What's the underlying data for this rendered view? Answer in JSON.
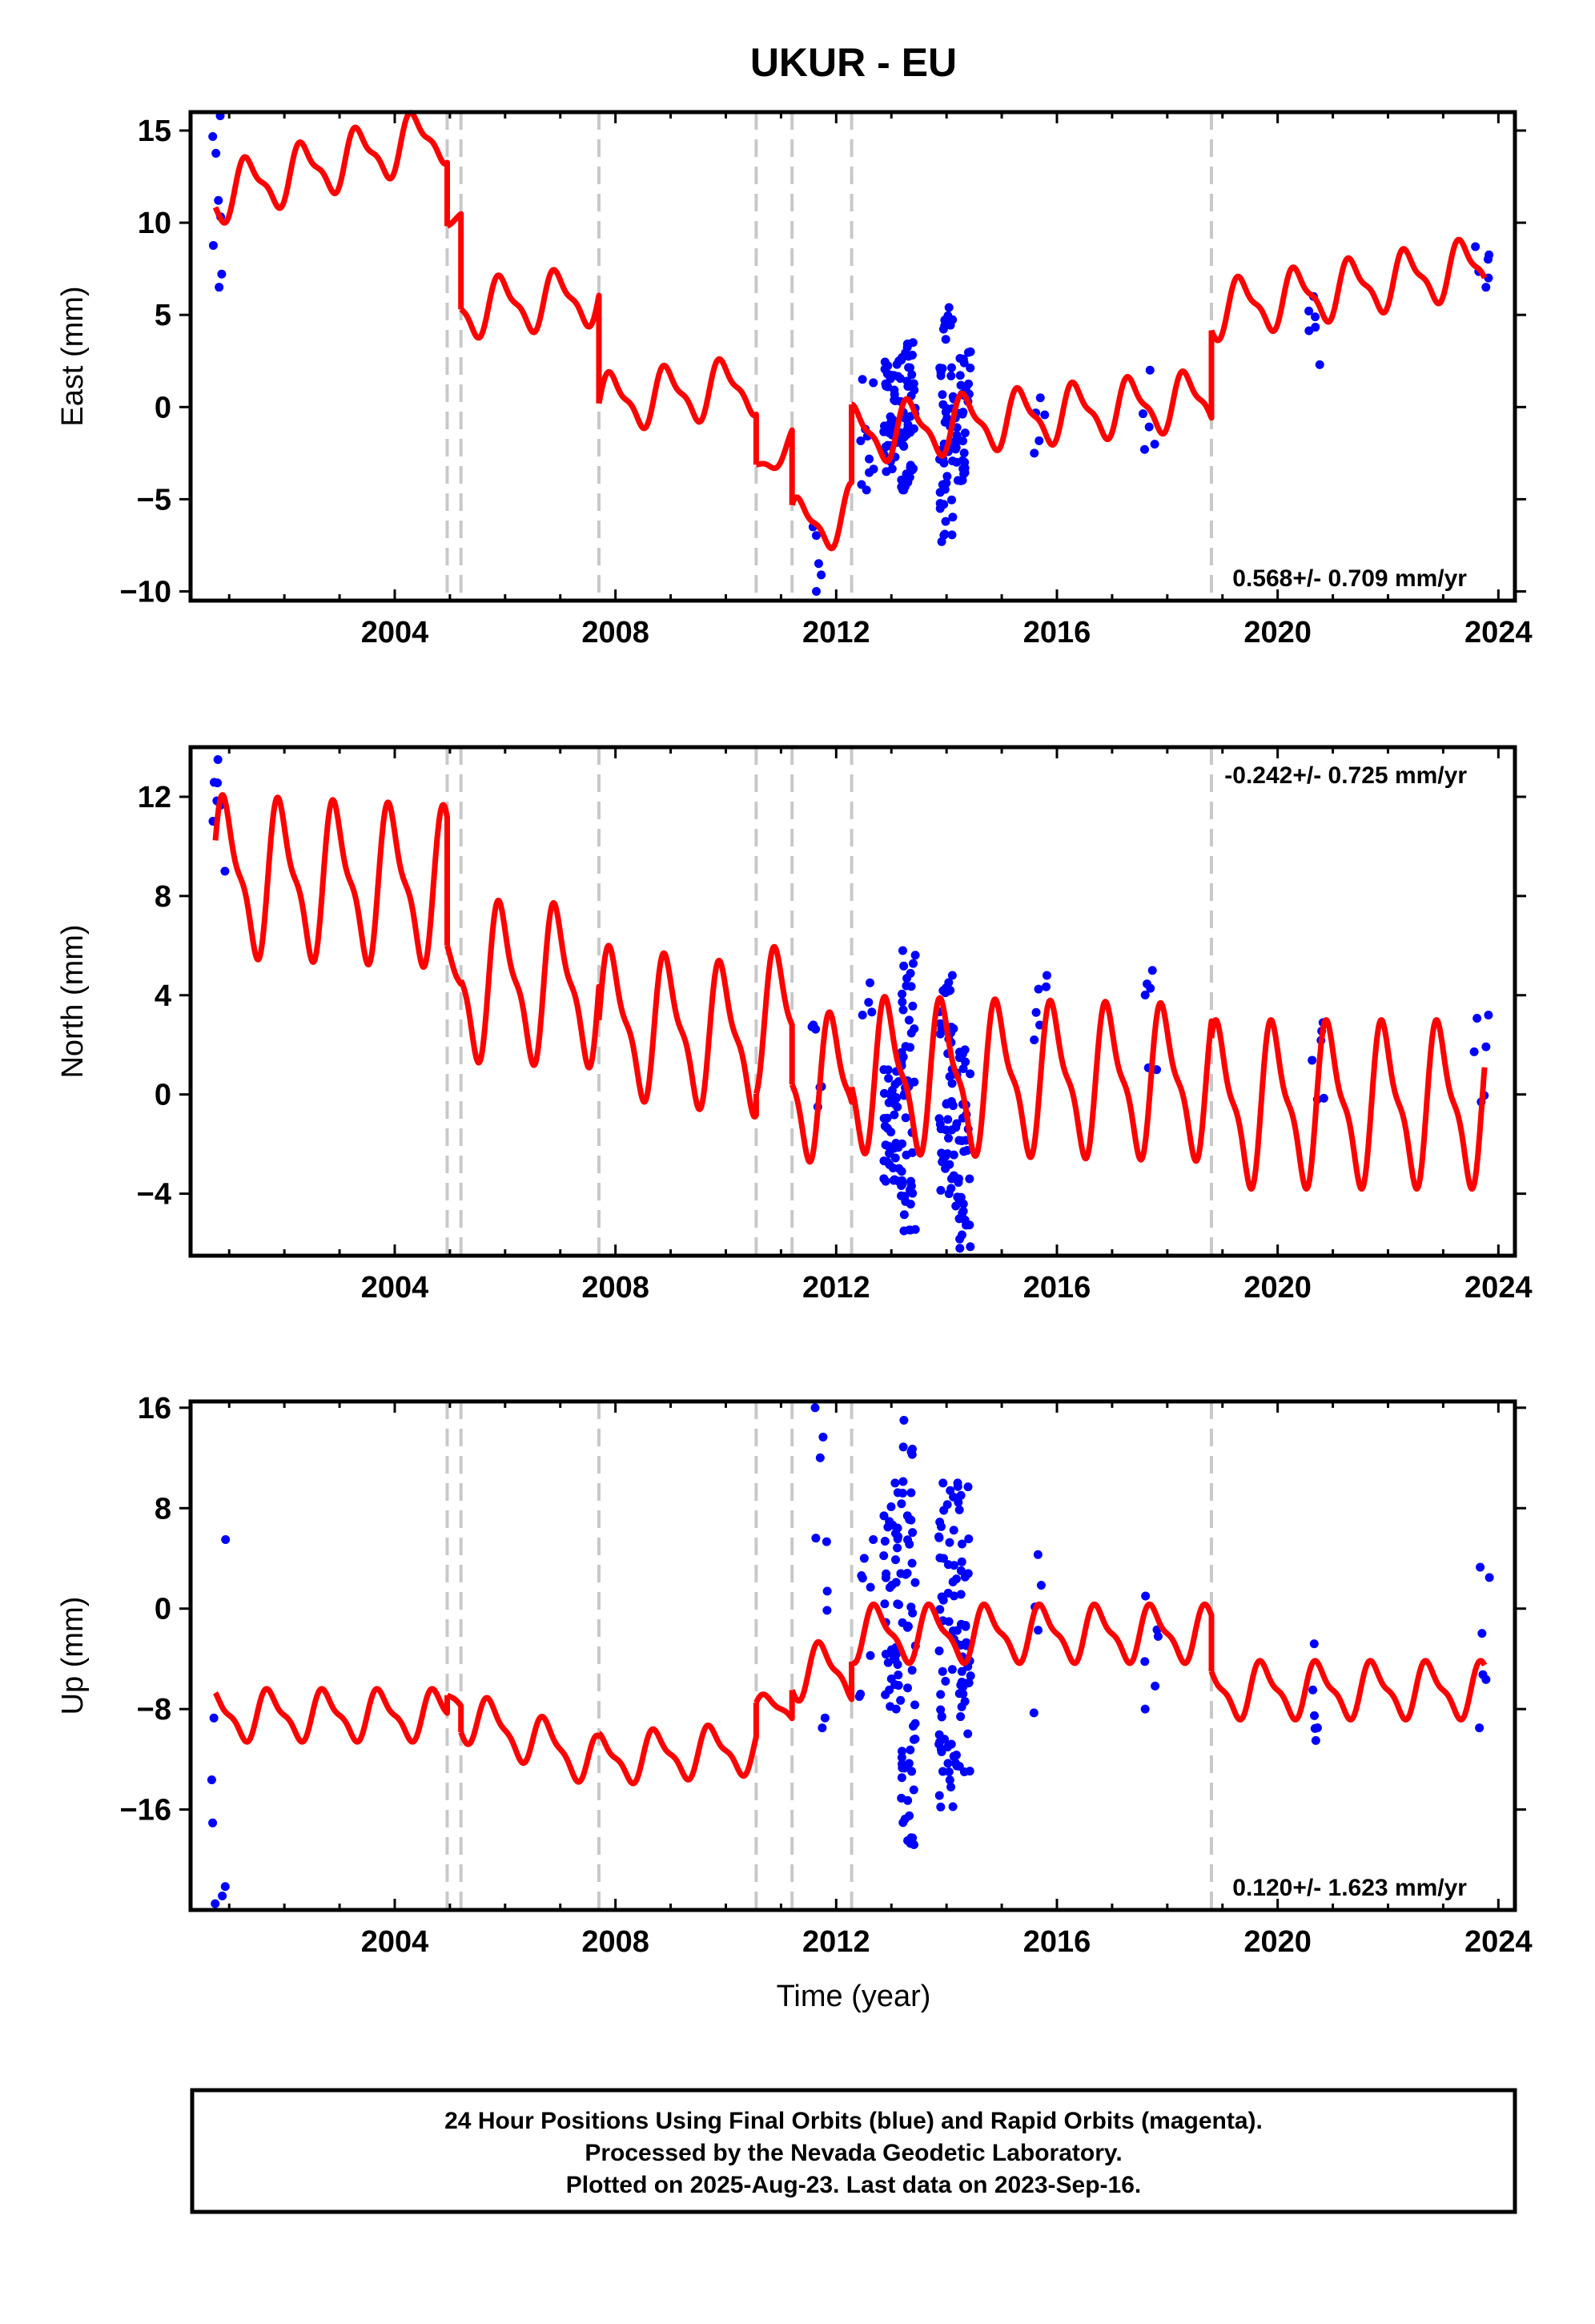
{
  "title": "UKUR - EU",
  "xlabel": "Time (year)",
  "footer": {
    "line1": "24 Hour Positions Using Final Orbits (blue) and Rapid Orbits (magenta).",
    "line2": "Processed by the Nevada Geodetic Laboratory.",
    "line3": "Plotted on 2025-Aug-23. Last data on 2023-Sep-16."
  },
  "colors": {
    "fit": "#ff0000",
    "points": "#0000ff",
    "breaks": "#c8c8c8",
    "frame": "#000000"
  },
  "chart_data": [
    {
      "type": "line",
      "panel": "east",
      "ylabel": "East (mm)",
      "xlim": [
        2000.3,
        2024.3
      ],
      "ylim": [
        -10.5,
        16
      ],
      "yticks": [
        15,
        10,
        5,
        0,
        -5,
        -10
      ],
      "ytick_labels": [
        "15",
        "10",
        "5",
        "0",
        "−5",
        "−10"
      ],
      "xticks": [
        2004,
        2008,
        2012,
        2016,
        2020,
        2024
      ],
      "rate_text": "0.568+/- 0.709 mm/yr",
      "rate_position": "bottom-right",
      "breaks": [
        2004.95,
        2005.2,
        2007.7,
        2010.55,
        2011.2,
        2012.28,
        2018.8
      ],
      "model": {
        "segments": [
          {
            "from": 2000.75,
            "to": 2004.95,
            "v0": 11.5,
            "t0": 2000.75,
            "rate": 0.8,
            "amp": 1.4,
            "phase": 0.9
          },
          {
            "from": 2004.95,
            "to": 2005.2,
            "v0": 10.1,
            "t0": 2004.95,
            "rate": 0.6,
            "amp": 0.25,
            "phase": 0.9
          },
          {
            "from": 2005.2,
            "to": 2007.7,
            "v0": 5.3,
            "t0": 2005.2,
            "rate": 0.3,
            "amp": 1.4,
            "phase": 1.3
          },
          {
            "from": 2007.7,
            "to": 2010.55,
            "v0": 0.2,
            "t0": 2007.7,
            "rate": 0.35,
            "amp": 1.4,
            "phase": 1.3
          },
          {
            "from": 2010.55,
            "to": 2011.2,
            "v0": -3.2,
            "t0": 2010.55,
            "rate": 2.0,
            "amp": 0.7,
            "phase": 0.9
          },
          {
            "from": 2011.2,
            "to": 2012.28,
            "v0": -6.6,
            "t0": 2011.2,
            "rate": 0.8,
            "amp": 1.4,
            "phase": 0.9
          },
          {
            "from": 2012.28,
            "to": 2018.8,
            "v0": -1.5,
            "t0": 2012.28,
            "rate": 0.3,
            "amp": 1.4,
            "phase": 0.9
          },
          {
            "from": 2018.8,
            "to": 2023.75,
            "v0": 5.2,
            "t0": 2018.8,
            "rate": 0.5,
            "amp": 1.4,
            "phase": 0.9
          }
        ]
      },
      "point_clusters": [
        {
          "x": 2000.82,
          "ymin": 6.5,
          "ymax": 15.8,
          "n": 8
        },
        {
          "x": 2012.55,
          "ymin": -4.5,
          "ymax": 1.5,
          "n": 10
        },
        {
          "x": 2013.0,
          "ymin": -3.5,
          "ymax": 2.5,
          "n": 40
        },
        {
          "x": 2013.3,
          "ymin": -4.5,
          "ymax": 3.5,
          "n": 50
        },
        {
          "x": 2014.0,
          "ymin": -7.3,
          "ymax": 5.4,
          "n": 50
        },
        {
          "x": 2014.3,
          "ymin": -4.0,
          "ymax": 3.0,
          "n": 40
        },
        {
          "x": 2011.65,
          "ymin": -10.0,
          "ymax": -6.5,
          "n": 5
        },
        {
          "x": 2015.7,
          "ymin": -2.5,
          "ymax": 0.5,
          "n": 5
        },
        {
          "x": 2017.7,
          "ymin": -2.3,
          "ymax": 2.0,
          "n": 5
        },
        {
          "x": 2020.7,
          "ymin": 2.3,
          "ymax": 6.0,
          "n": 6
        },
        {
          "x": 2023.7,
          "ymin": 6.5,
          "ymax": 8.7,
          "n": 6
        }
      ]
    },
    {
      "type": "line",
      "panel": "north",
      "ylabel": "North (mm)",
      "xlim": [
        2000.3,
        2024.3
      ],
      "ylim": [
        -6.5,
        14
      ],
      "yticks": [
        12,
        8,
        4,
        0,
        -4
      ],
      "ytick_labels": [
        "12",
        "8",
        "4",
        "0",
        "−4"
      ],
      "xticks": [
        2004,
        2008,
        2012,
        2016,
        2020,
        2024
      ],
      "rate_text": "-0.242+/- 0.725 mm/yr",
      "rate_position": "top-right",
      "breaks": [
        2004.95,
        2005.2,
        2007.7,
        2010.55,
        2011.2,
        2012.28,
        2018.8
      ],
      "model": {
        "segments": [
          {
            "from": 2000.75,
            "to": 2004.95,
            "v0": 8.8,
            "t0": 2000.75,
            "rate": -0.1,
            "amp": 2.8,
            "phase": 0.3
          },
          {
            "from": 2004.95,
            "to": 2005.2,
            "v0": 4.5,
            "t0": 2004.95,
            "rate": -0.2,
            "amp": 1.5,
            "phase": 0.3
          },
          {
            "from": 2005.2,
            "to": 2007.7,
            "v0": 4.6,
            "t0": 2005.2,
            "rate": -0.1,
            "amp": 2.8,
            "phase": 0.3
          },
          {
            "from": 2007.7,
            "to": 2010.55,
            "v0": 3.0,
            "t0": 2007.7,
            "rate": -0.3,
            "amp": 2.6,
            "phase": 0.3
          },
          {
            "from": 2010.55,
            "to": 2011.2,
            "v0": 3.0,
            "t0": 2010.55,
            "rate": -0.3,
            "amp": 2.6,
            "phase": 0.3
          },
          {
            "from": 2011.2,
            "to": 2012.28,
            "v0": 0.4,
            "t0": 2011.2,
            "rate": -0.2,
            "amp": 2.6,
            "phase": 0.3
          },
          {
            "from": 2012.28,
            "to": 2018.8,
            "v0": 0.8,
            "t0": 2012.28,
            "rate": -0.05,
            "amp": 2.7,
            "phase": 0.3
          },
          {
            "from": 2018.8,
            "to": 2023.75,
            "v0": -0.4,
            "t0": 2018.8,
            "rate": 0.0,
            "amp": 2.9,
            "phase": 0.3
          }
        ]
      },
      "point_clusters": [
        {
          "x": 2000.82,
          "ymin": 9.0,
          "ymax": 13.5,
          "n": 7
        },
        {
          "x": 2011.7,
          "ymin": -0.5,
          "ymax": 2.8,
          "n": 6
        },
        {
          "x": 2012.55,
          "ymin": 3.2,
          "ymax": 4.5,
          "n": 4
        },
        {
          "x": 2013.0,
          "ymin": -3.5,
          "ymax": 1.0,
          "n": 40
        },
        {
          "x": 2013.3,
          "ymin": -5.5,
          "ymax": 5.8,
          "n": 50
        },
        {
          "x": 2014.0,
          "ymin": -4.0,
          "ymax": 4.8,
          "n": 45
        },
        {
          "x": 2014.3,
          "ymin": -6.2,
          "ymax": 1.8,
          "n": 40
        },
        {
          "x": 2015.7,
          "ymin": 2.2,
          "ymax": 4.8,
          "n": 6
        },
        {
          "x": 2017.7,
          "ymin": 1.0,
          "ymax": 5.0,
          "n": 6
        },
        {
          "x": 2020.7,
          "ymin": -0.2,
          "ymax": 2.9,
          "n": 6
        },
        {
          "x": 2023.7,
          "ymin": -0.3,
          "ymax": 3.2,
          "n": 6
        }
      ]
    },
    {
      "type": "line",
      "panel": "up",
      "ylabel": "Up (mm)",
      "xlim": [
        2000.3,
        2024.3
      ],
      "ylim": [
        -24,
        16.5
      ],
      "yticks": [
        16,
        8,
        0,
        -8,
        -16
      ],
      "ytick_labels": [
        "16",
        "8",
        "0",
        "−8",
        "−16"
      ],
      "xticks": [
        2004,
        2008,
        2012,
        2016,
        2020,
        2024
      ],
      "rate_text": "0.120+/- 1.623 mm/yr",
      "rate_position": "bottom-right",
      "breaks": [
        2004.95,
        2005.2,
        2007.7,
        2010.55,
        2011.2,
        2012.28,
        2018.8
      ],
      "model": {
        "segments": [
          {
            "from": 2000.75,
            "to": 2004.95,
            "v0": -8.5,
            "t0": 2000.75,
            "rate": 0.0,
            "amp": 1.8,
            "phase": 0.5
          },
          {
            "from": 2004.95,
            "to": 2005.2,
            "v0": -7.0,
            "t0": 2004.95,
            "rate": 0.0,
            "amp": 1.0,
            "phase": 0.5
          },
          {
            "from": 2005.2,
            "to": 2007.7,
            "v0": -8.5,
            "t0": 2005.2,
            "rate": -1.5,
            "amp": 1.8,
            "phase": 0.5
          },
          {
            "from": 2007.7,
            "to": 2010.55,
            "v0": -12.0,
            "t0": 2007.7,
            "rate": 0.3,
            "amp": 1.8,
            "phase": 0.5
          },
          {
            "from": 2010.55,
            "to": 2011.2,
            "v0": -8.0,
            "t0": 2010.55,
            "rate": 0.0,
            "amp": 1.0,
            "phase": 0.5
          },
          {
            "from": 2011.2,
            "to": 2012.28,
            "v0": -5.0,
            "t0": 2011.2,
            "rate": 0.0,
            "amp": 2.0,
            "phase": 0.5
          },
          {
            "from": 2012.28,
            "to": 2018.8,
            "v0": -2.0,
            "t0": 2012.28,
            "rate": 0.0,
            "amp": 2.0,
            "phase": 0.5
          },
          {
            "from": 2018.8,
            "to": 2023.75,
            "v0": -6.5,
            "t0": 2018.8,
            "rate": 0.0,
            "amp": 2.0,
            "phase": 0.5
          }
        ]
      },
      "point_clusters": [
        {
          "x": 2000.82,
          "ymin": -23.5,
          "ymax": 5.5,
          "n": 7
        },
        {
          "x": 2011.7,
          "ymin": -9.5,
          "ymax": 16.0,
          "n": 9
        },
        {
          "x": 2012.55,
          "ymin": -7.0,
          "ymax": 5.5,
          "n": 8
        },
        {
          "x": 2013.0,
          "ymin": -8.0,
          "ymax": 10.0,
          "n": 40
        },
        {
          "x": 2013.3,
          "ymin": -18.8,
          "ymax": 15.0,
          "n": 55
        },
        {
          "x": 2014.0,
          "ymin": -15.8,
          "ymax": 10.0,
          "n": 50
        },
        {
          "x": 2014.3,
          "ymin": -13.0,
          "ymax": 10.0,
          "n": 45
        },
        {
          "x": 2015.7,
          "ymin": -8.3,
          "ymax": 4.3,
          "n": 5
        },
        {
          "x": 2017.7,
          "ymin": -8.0,
          "ymax": 1.0,
          "n": 6
        },
        {
          "x": 2020.7,
          "ymin": -10.5,
          "ymax": -2.8,
          "n": 6
        },
        {
          "x": 2023.7,
          "ymin": -9.5,
          "ymax": 3.3,
          "n": 6
        }
      ]
    }
  ]
}
